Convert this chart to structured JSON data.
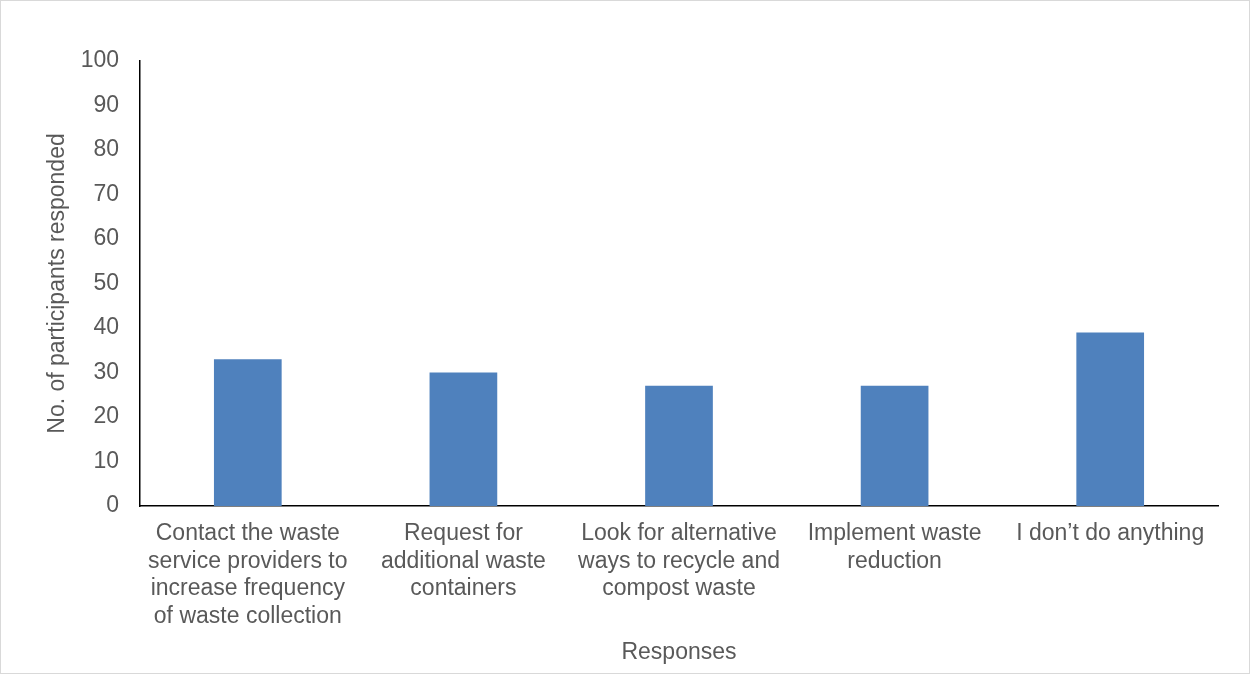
{
  "chart_data": {
    "type": "bar",
    "xlabel": "Responses",
    "ylabel": "No. of participants responded",
    "categories": [
      "Contact the waste service providers to increase frequency of waste collection",
      "Request for additional waste containers",
      "Look for alternative ways to recycle and compost waste",
      "Implement waste reduction",
      "I don’t do anything"
    ],
    "values": [
      33,
      30,
      27,
      27,
      39
    ],
    "color": "#4f81bd",
    "ylim": [
      0,
      100
    ],
    "yticks": [
      0,
      10,
      20,
      30,
      40,
      50,
      60,
      70,
      80,
      90,
      100
    ]
  }
}
